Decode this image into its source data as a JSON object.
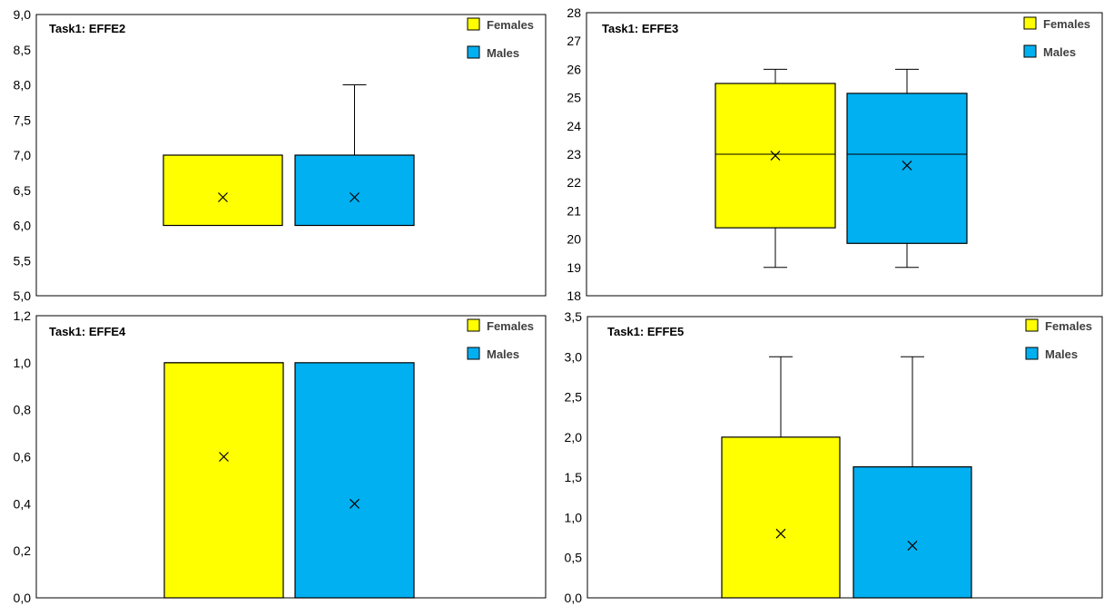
{
  "chart_data": [
    {
      "type": "box",
      "title": "Task1: EFFE2",
      "ylim": [
        5.0,
        9.0
      ],
      "ytick_step": 0.5,
      "decimals": 1,
      "decimal_separator": ",",
      "grid": false,
      "legend_position": "top-right",
      "series": [
        {
          "name": "Females",
          "color": "#FFFF00",
          "min": 6.0,
          "q1": 6.0,
          "median": 7.0,
          "q3": 7.0,
          "max": 7.0,
          "mean": 6.4
        },
        {
          "name": "Males",
          "color": "#00B0F0",
          "min": 6.0,
          "q1": 6.0,
          "median": 7.0,
          "q3": 7.0,
          "max": 8.0,
          "mean": 6.4
        }
      ]
    },
    {
      "type": "box",
      "title": "Task1: EFFE3",
      "ylim": [
        18,
        28
      ],
      "ytick_step": 1,
      "decimals": 0,
      "decimal_separator": ",",
      "grid": false,
      "legend_position": "top-right",
      "series": [
        {
          "name": "Females",
          "color": "#FFFF00",
          "min": 19,
          "q1": 20.4,
          "median": 23.0,
          "q3": 25.5,
          "max": 26,
          "mean": 22.95
        },
        {
          "name": "Males",
          "color": "#00B0F0",
          "min": 19,
          "q1": 19.85,
          "median": 23.0,
          "q3": 25.15,
          "max": 26,
          "mean": 22.6
        }
      ]
    },
    {
      "type": "box",
      "title": "Task1: EFFE4",
      "ylim": [
        0.0,
        1.2
      ],
      "ytick_step": 0.2,
      "decimals": 1,
      "decimal_separator": ",",
      "grid": false,
      "legend_position": "top-right",
      "series": [
        {
          "name": "Females",
          "color": "#FFFF00",
          "min": 0.0,
          "q1": 0.0,
          "median": 1.0,
          "q3": 1.0,
          "max": 1.0,
          "mean": 0.6
        },
        {
          "name": "Males",
          "color": "#00B0F0",
          "min": 0.0,
          "q1": 0.0,
          "median": 0.0,
          "q3": 1.0,
          "max": 1.0,
          "mean": 0.4
        }
      ]
    },
    {
      "type": "box",
      "title": "Task1: EFFE5",
      "ylim": [
        0.0,
        3.5
      ],
      "ytick_step": 0.5,
      "decimals": 1,
      "decimal_separator": ",",
      "grid": false,
      "legend_position": "top-right",
      "series": [
        {
          "name": "Females",
          "color": "#FFFF00",
          "min": 0.0,
          "q1": 0.0,
          "median": 0.0,
          "q3": 2.0,
          "max": 3.0,
          "mean": 0.8
        },
        {
          "name": "Males",
          "color": "#00B0F0",
          "min": 0.0,
          "q1": 0.0,
          "median": 0.0,
          "q3": 1.63,
          "max": 3.0,
          "mean": 0.65
        }
      ]
    }
  ]
}
